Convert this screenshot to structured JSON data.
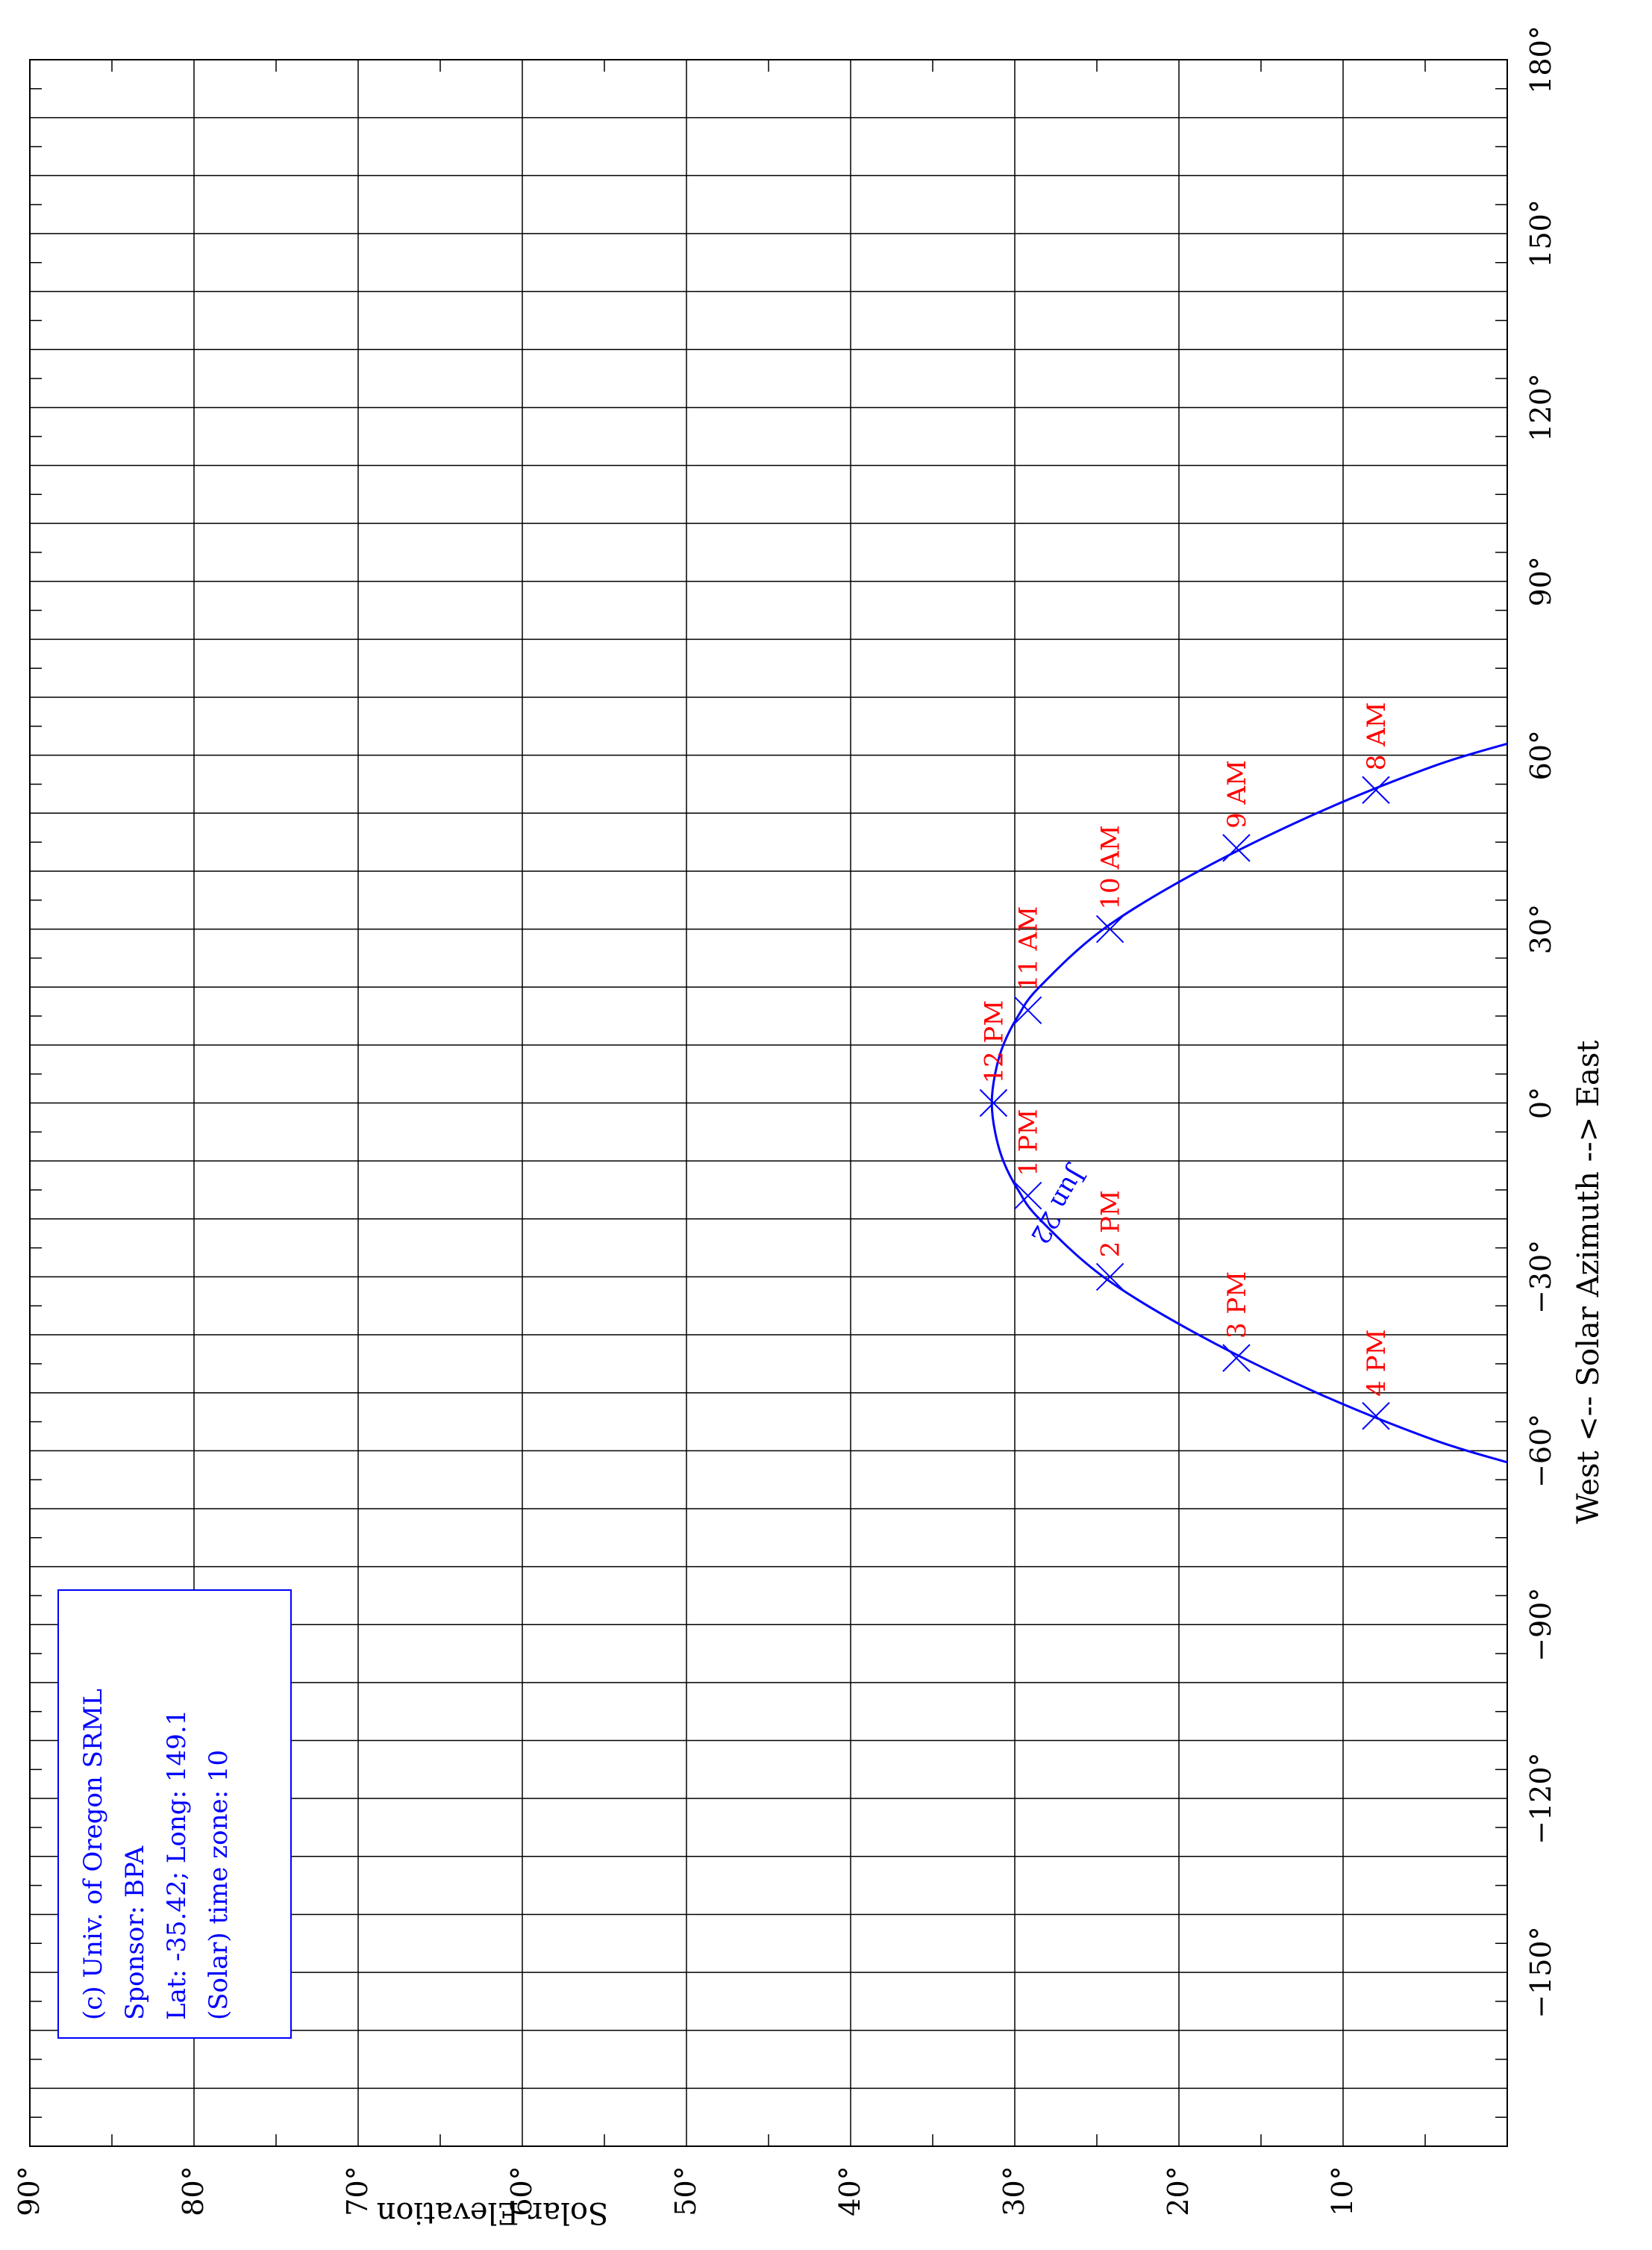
{
  "chart_data": {
    "type": "line",
    "title": "",
    "xlabel": "West <-- Solar Azimuth --> East",
    "ylabel": "Solar Elevation",
    "x_ticks": [
      -150,
      -120,
      -90,
      -60,
      -30,
      0,
      30,
      60,
      90,
      120,
      150,
      180
    ],
    "x_tick_labels": [
      "−150°",
      "−120°",
      "−90°",
      "−60°",
      "−30°",
      "0°",
      "30°",
      "60°",
      "90°",
      "120°",
      "150°",
      "180°"
    ],
    "y_ticks": [
      10,
      20,
      30,
      40,
      50,
      60,
      70,
      80,
      90
    ],
    "y_tick_labels": [
      "10°",
      "20°",
      "30°",
      "40°",
      "50°",
      "60°",
      "70°",
      "80°",
      "90°"
    ],
    "xlim": [
      -180,
      180
    ],
    "ylim": [
      0,
      90
    ],
    "grid": true,
    "orientation": "rotated-90-clockwise",
    "series": [
      {
        "name": "Jun 22",
        "color": "#0000ff",
        "x": [
          -62,
          -58,
          -50,
          -40,
          -30,
          -20,
          -15,
          -10,
          -5,
          0,
          5,
          10,
          15,
          20,
          30,
          40,
          50,
          58,
          62
        ],
        "y": [
          0,
          4.6,
          11.6,
          18.8,
          24.6,
          28.5,
          29.8,
          30.7,
          31.2,
          31.4,
          31.2,
          30.7,
          29.8,
          28.5,
          24.6,
          18.8,
          11.6,
          4.6,
          0
        ]
      }
    ],
    "hour_markers": [
      {
        "label": "8 AM",
        "azimuth": 54,
        "elevation": 8
      },
      {
        "label": "9 AM",
        "azimuth": 44,
        "elevation": 16.5
      },
      {
        "label": "10 AM",
        "azimuth": 30,
        "elevation": 24.2
      },
      {
        "label": "11 AM",
        "azimuth": 16,
        "elevation": 29.2
      },
      {
        "label": "12 PM",
        "azimuth": 0,
        "elevation": 31.3
      },
      {
        "label": "1 PM",
        "azimuth": -16,
        "elevation": 29.2
      },
      {
        "label": "2 PM",
        "azimuth": -30,
        "elevation": 24.2
      },
      {
        "label": "3 PM",
        "azimuth": -44,
        "elevation": 16.5
      },
      {
        "label": "4 PM",
        "azimuth": -54,
        "elevation": 8
      }
    ],
    "curve_label": "Jun 22",
    "info_box": [
      "(c) Univ. of Oregon SRML",
      "Sponsor: BPA",
      "Lat: -35.42; Long: 149.1",
      "(Solar) time zone: 10"
    ],
    "colors": {
      "curve": "#0000ff",
      "hour_labels": "#ff0000",
      "grid": "#000000"
    }
  }
}
